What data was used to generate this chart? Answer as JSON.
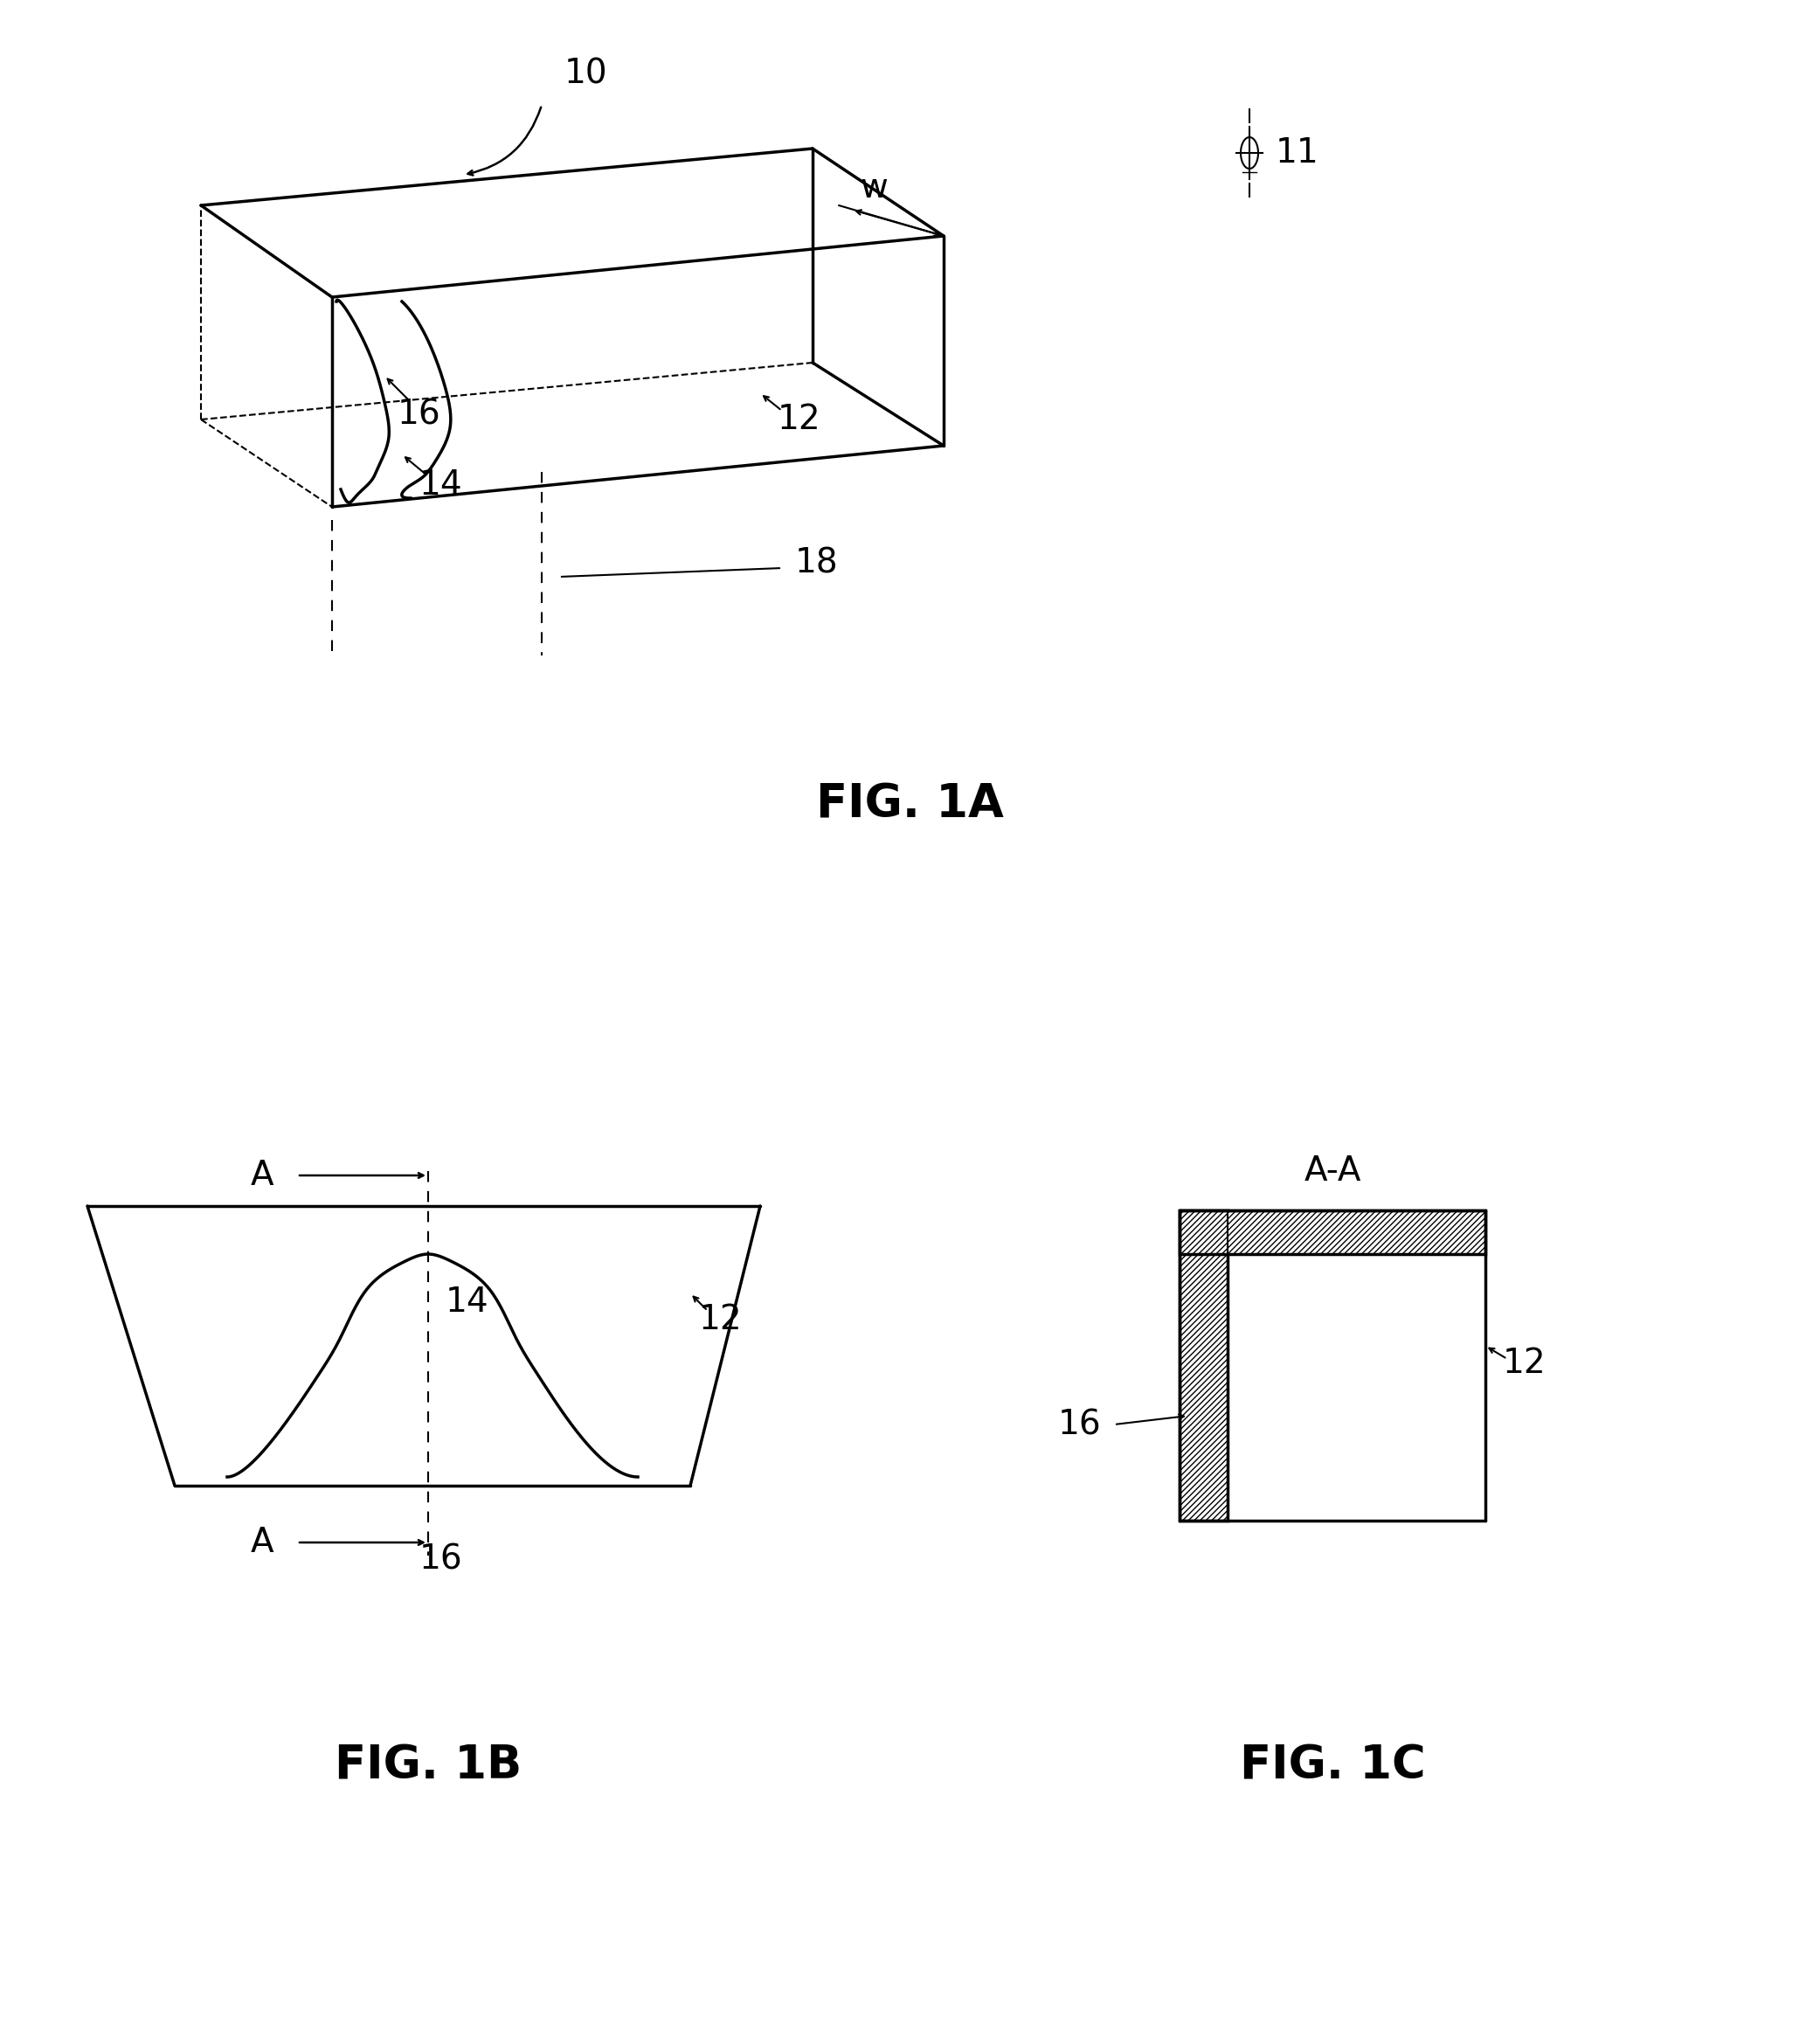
{
  "fig_width": 20.83,
  "fig_height": 23.24,
  "bg_color": "#ffffff",
  "line_color": "#000000",
  "label_color": "#000000",
  "fig_labels": {
    "1A": "FIG. 1A",
    "1B": "FIG. 1B",
    "1C": "FIG. 1C"
  },
  "reference_numbers": {
    "10": "10",
    "11": "11",
    "12": "12",
    "14": "14",
    "16": "16",
    "18": "18",
    "w": "w",
    "AA": "A-A"
  }
}
